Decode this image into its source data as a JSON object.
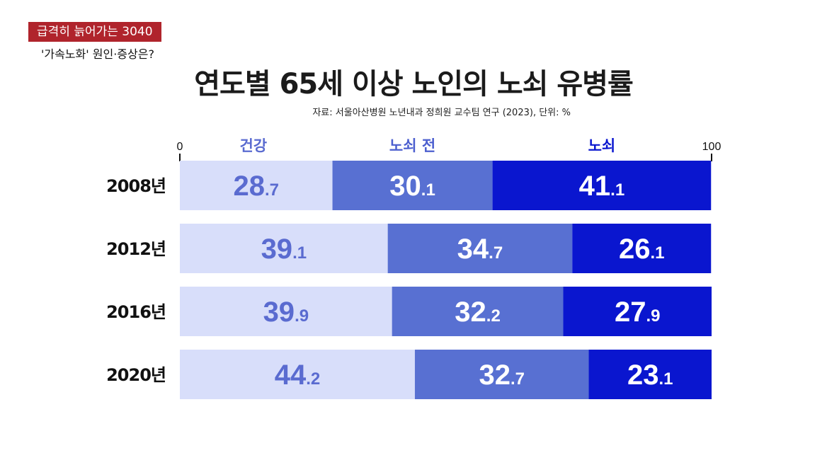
{
  "tag": {
    "label": "급격히 늙어가는 3040",
    "sub": "'가속노화' 원인·증상은?"
  },
  "chart_data": {
    "type": "bar",
    "stacked": true,
    "orientation": "horizontal",
    "title": "연도별 65세 이상 노인의 노쇠 유병률",
    "source": "자료: 서울아산병원 노년내과 정희원 교수팀 연구 (2023), 단위: %",
    "xlim": [
      0,
      100
    ],
    "axis_ticks": [
      "0",
      "100"
    ],
    "categories": [
      "2008년",
      "2012년",
      "2016년",
      "2020년"
    ],
    "series": [
      {
        "name": "건강",
        "values": [
          28.7,
          39.1,
          39.9,
          44.2
        ],
        "color": "#d8defa",
        "text_color": "#5a6bd0"
      },
      {
        "name": "노쇠 전",
        "values": [
          30.1,
          34.7,
          32.2,
          32.7
        ],
        "color": "#5870d2",
        "text_color": "#ffffff"
      },
      {
        "name": "노쇠",
        "values": [
          41.1,
          26.1,
          27.9,
          23.1
        ],
        "color": "#0a16cf",
        "text_color": "#ffffff"
      }
    ],
    "legend_colors": [
      "#5a6bd0",
      "#4c5fcf",
      "#0a16cf"
    ]
  }
}
